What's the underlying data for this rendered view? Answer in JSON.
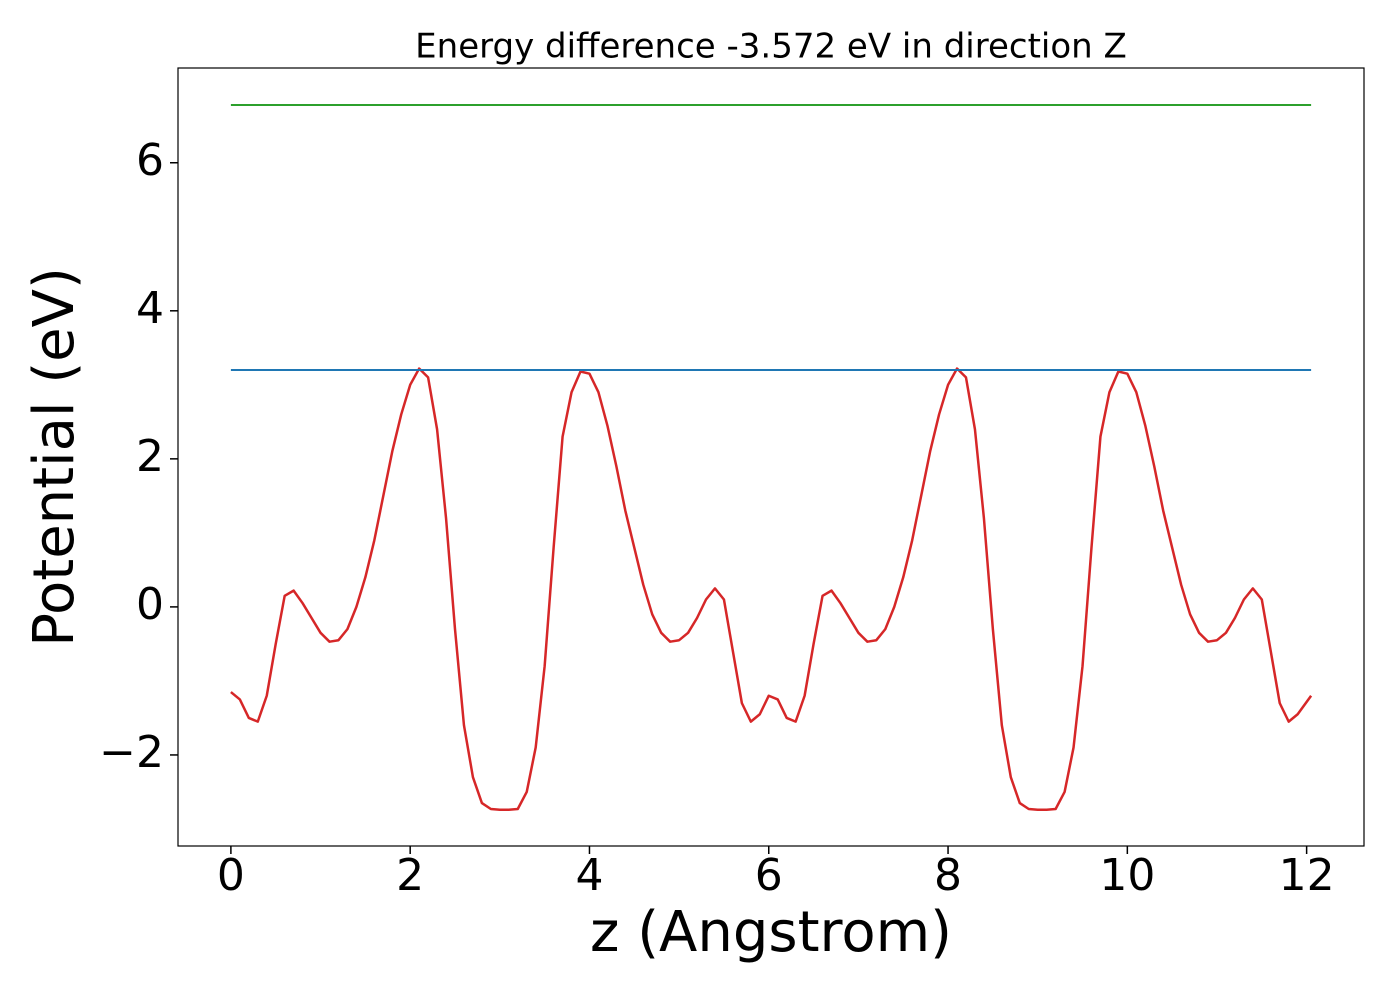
{
  "chart_data": {
    "type": "line",
    "title": "Energy difference -3.572 eV in direction Z",
    "xlabel": "z (Angstrom)",
    "ylabel": "Potential (eV)",
    "xlim": [
      -0.59,
      12.64
    ],
    "ylim": [
      -3.23,
      7.28
    ],
    "xticks": [
      0,
      2,
      4,
      6,
      8,
      10,
      12
    ],
    "yticks": [
      {
        "value": -2,
        "label": "−2"
      },
      0,
      2,
      4,
      6
    ],
    "series": [
      {
        "color": "#d62728",
        "x": [
          0,
          0.1,
          0.2,
          0.3,
          0.4,
          0.5,
          0.6,
          0.7,
          0.8,
          0.9,
          1,
          1.1,
          1.2,
          1.3,
          1.4,
          1.5,
          1.6,
          1.7,
          1.8,
          1.9,
          2,
          2.1,
          2.2,
          2.3,
          2.4,
          2.5,
          2.6,
          2.7,
          2.8,
          2.9,
          3,
          3.1,
          3.2,
          3.3,
          3.4,
          3.5,
          3.6,
          3.7,
          3.8,
          3.9,
          4,
          4.1,
          4.2,
          4.3,
          4.4,
          4.5,
          4.6,
          4.7,
          4.8,
          4.9,
          5,
          5.1,
          5.2,
          5.3,
          5.4,
          5.5,
          5.6,
          5.7,
          5.8,
          5.9,
          6,
          6.1,
          6.2,
          6.3,
          6.4,
          6.5,
          6.6,
          6.7,
          6.8,
          6.9,
          7,
          7.1,
          7.2,
          7.3,
          7.4,
          7.5,
          7.6,
          7.7,
          7.8,
          7.9,
          8,
          8.1,
          8.2,
          8.3,
          8.4,
          8.5,
          8.6,
          8.7,
          8.8,
          8.9,
          9,
          9.1,
          9.2,
          9.3,
          9.4,
          9.5,
          9.6,
          9.7,
          9.8,
          9.9,
          10,
          10.1,
          10.2,
          10.3,
          10.4,
          10.5,
          10.6,
          10.7,
          10.8,
          10.9,
          11,
          11.1,
          11.2,
          11.3,
          11.4,
          11.5,
          11.6,
          11.7,
          11.8,
          11.9,
          12.05
        ],
        "values": [
          -1.15,
          -1.25,
          -1.5,
          -1.55,
          -1.2,
          -0.5,
          0.15,
          0.22,
          0.05,
          -0.15,
          -0.35,
          -0.47,
          -0.45,
          -0.3,
          0.0,
          0.4,
          0.9,
          1.5,
          2.1,
          2.6,
          3.0,
          3.22,
          3.1,
          2.4,
          1.2,
          -0.3,
          -1.6,
          -2.3,
          -2.65,
          -2.73,
          -2.74,
          -2.74,
          -2.73,
          -2.5,
          -1.9,
          -0.8,
          0.8,
          2.3,
          2.9,
          3.18,
          3.15,
          2.9,
          2.45,
          1.9,
          1.3,
          0.8,
          0.3,
          -0.1,
          -0.35,
          -0.47,
          -0.45,
          -0.35,
          -0.15,
          0.1,
          0.25,
          0.1,
          -0.6,
          -1.3,
          -1.55,
          -1.45,
          -1.2,
          -1.25,
          -1.5,
          -1.55,
          -1.2,
          -0.5,
          0.15,
          0.22,
          0.05,
          -0.15,
          -0.35,
          -0.47,
          -0.45,
          -0.3,
          0.0,
          0.4,
          0.9,
          1.5,
          2.1,
          2.6,
          3.0,
          3.22,
          3.1,
          2.4,
          1.2,
          -0.3,
          -1.6,
          -2.3,
          -2.65,
          -2.73,
          -2.74,
          -2.74,
          -2.73,
          -2.5,
          -1.9,
          -0.8,
          0.8,
          2.3,
          2.9,
          3.18,
          3.15,
          2.9,
          2.45,
          1.9,
          1.3,
          0.8,
          0.3,
          -0.1,
          -0.35,
          -0.47,
          -0.45,
          -0.35,
          -0.15,
          0.1,
          0.25,
          0.1,
          -0.6,
          -1.3,
          -1.55,
          -1.45,
          -1.2
        ]
      },
      {
        "color": "#1f77b4",
        "x": [
          0,
          12.05
        ],
        "values": [
          3.2,
          3.2
        ]
      },
      {
        "color": "#2ca02c",
        "x": [
          0,
          12.05
        ],
        "values": [
          6.78,
          6.78
        ]
      }
    ]
  }
}
